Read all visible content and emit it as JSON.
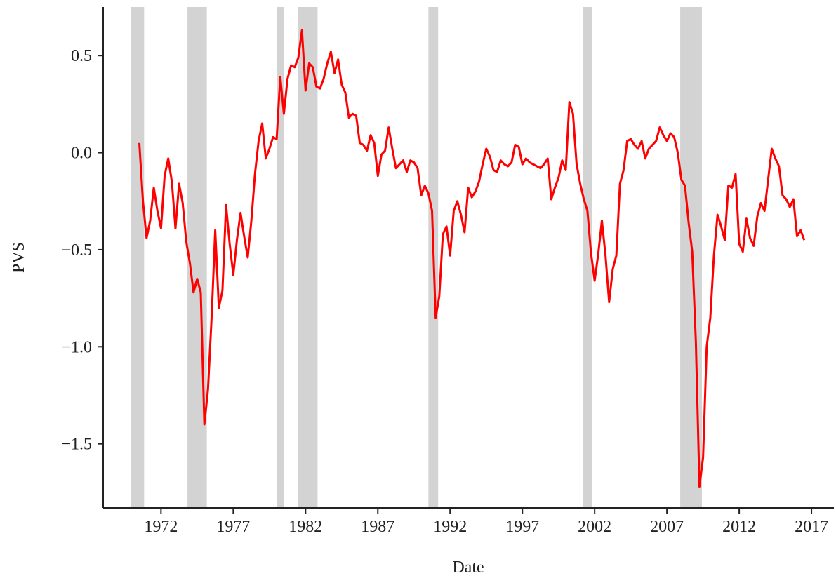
{
  "chart_data": {
    "type": "line",
    "xlabel": "Date",
    "ylabel": "PVS",
    "xlim": [
      1968,
      2018.55
    ],
    "ylim": [
      -1.83,
      0.75
    ],
    "xticks": [
      1972,
      1977,
      1982,
      1987,
      1992,
      1997,
      2002,
      2007,
      2012,
      2017
    ],
    "yticks": [
      0.5,
      {
        "value": 0,
        "label": "0.0"
      },
      {
        "value": -0.5,
        "label": "−0.5"
      },
      {
        "value": -1.0,
        "label": "−1.0"
      },
      {
        "value": -1.5,
        "label": "−1.5"
      }
    ],
    "grid": false,
    "shaded_periods": [
      [
        1969.92,
        1970.83
      ],
      [
        1973.83,
        1975.17
      ],
      [
        1980.0,
        1980.5
      ],
      [
        1981.5,
        1982.83
      ],
      [
        1990.5,
        1991.17
      ],
      [
        2001.17,
        2001.83
      ],
      [
        2007.92,
        2009.42
      ]
    ],
    "shade_color": "#d3d3d3",
    "series": [
      {
        "name": "PVS",
        "color": "#ff0000",
        "x": [
          1970.5,
          1970.75,
          1971,
          1971.25,
          1971.5,
          1971.75,
          1972,
          1972.25,
          1972.5,
          1972.75,
          1973,
          1973.25,
          1973.5,
          1973.75,
          1974,
          1974.25,
          1974.5,
          1974.75,
          1975,
          1975.25,
          1975.5,
          1975.75,
          1976,
          1976.25,
          1976.5,
          1976.75,
          1977,
          1977.25,
          1977.5,
          1977.75,
          1978,
          1978.25,
          1978.5,
          1978.75,
          1979,
          1979.25,
          1979.5,
          1979.75,
          1980,
          1980.25,
          1980.5,
          1980.75,
          1981,
          1981.25,
          1981.5,
          1981.75,
          1982,
          1982.25,
          1982.5,
          1982.75,
          1983,
          1983.25,
          1983.5,
          1983.75,
          1984,
          1984.25,
          1984.5,
          1984.75,
          1985,
          1985.25,
          1985.5,
          1985.75,
          1986,
          1986.25,
          1986.5,
          1986.75,
          1987,
          1987.25,
          1987.5,
          1987.75,
          1988,
          1988.25,
          1988.5,
          1988.75,
          1989,
          1989.25,
          1989.5,
          1989.75,
          1990,
          1990.25,
          1990.5,
          1990.75,
          1991,
          1991.25,
          1991.5,
          1991.75,
          1992,
          1992.25,
          1992.5,
          1992.75,
          1993,
          1993.25,
          1993.5,
          1993.75,
          1994,
          1994.25,
          1994.5,
          1994.75,
          1995,
          1995.25,
          1995.5,
          1995.75,
          1996,
          1996.25,
          1996.5,
          1996.75,
          1997,
          1997.25,
          1997.5,
          1997.75,
          1998,
          1998.25,
          1998.5,
          1998.75,
          1999,
          1999.25,
          1999.5,
          1999.75,
          2000,
          2000.25,
          2000.5,
          2000.75,
          2001,
          2001.25,
          2001.5,
          2001.75,
          2002,
          2002.25,
          2002.5,
          2002.75,
          2003,
          2003.25,
          2003.5,
          2003.75,
          2004,
          2004.25,
          2004.5,
          2004.75,
          2005,
          2005.25,
          2005.5,
          2005.75,
          2006,
          2006.25,
          2006.5,
          2006.75,
          2007,
          2007.25,
          2007.5,
          2007.75,
          2008,
          2008.25,
          2008.5,
          2008.75,
          2009,
          2009.25,
          2009.5,
          2009.75,
          2010,
          2010.25,
          2010.5,
          2010.75,
          2011,
          2011.25,
          2011.5,
          2011.75,
          2012,
          2012.25,
          2012.5,
          2012.75,
          2013,
          2013.25,
          2013.5,
          2013.75,
          2014,
          2014.25,
          2014.5,
          2014.75,
          2015,
          2015.25,
          2015.5,
          2015.75,
          2016,
          2016.25,
          2016.5
        ],
        "values": [
          0.05,
          -0.25,
          -0.44,
          -0.35,
          -0.18,
          -0.3,
          -0.39,
          -0.12,
          -0.03,
          -0.15,
          -0.39,
          -0.16,
          -0.26,
          -0.46,
          -0.57,
          -0.72,
          -0.65,
          -0.72,
          -1.4,
          -1.22,
          -0.85,
          -0.4,
          -0.8,
          -0.71,
          -0.27,
          -0.47,
          -0.63,
          -0.45,
          -0.31,
          -0.43,
          -0.54,
          -0.35,
          -0.11,
          0.06,
          0.15,
          -0.03,
          0.02,
          0.08,
          0.07,
          0.39,
          0.2,
          0.38,
          0.45,
          0.44,
          0.49,
          0.63,
          0.32,
          0.46,
          0.44,
          0.34,
          0.33,
          0.38,
          0.46,
          0.52,
          0.41,
          0.48,
          0.35,
          0.31,
          0.18,
          0.2,
          0.19,
          0.05,
          0.04,
          0.01,
          0.09,
          0.05,
          -0.12,
          -0.01,
          0.01,
          0.13,
          0.02,
          -0.08,
          -0.06,
          -0.04,
          -0.1,
          -0.04,
          -0.05,
          -0.08,
          -0.22,
          -0.17,
          -0.21,
          -0.3,
          -0.85,
          -0.74,
          -0.42,
          -0.38,
          -0.53,
          -0.3,
          -0.25,
          -0.32,
          -0.41,
          -0.18,
          -0.23,
          -0.2,
          -0.15,
          -0.06,
          0.02,
          -0.02,
          -0.09,
          -0.1,
          -0.04,
          -0.06,
          -0.07,
          -0.05,
          0.04,
          0.03,
          -0.06,
          -0.03,
          -0.05,
          -0.06,
          -0.07,
          -0.08,
          -0.06,
          -0.03,
          -0.24,
          -0.18,
          -0.13,
          -0.04,
          -0.09,
          0.26,
          0.2,
          -0.06,
          -0.16,
          -0.24,
          -0.3,
          -0.52,
          -0.66,
          -0.52,
          -0.35,
          -0.53,
          -0.77,
          -0.6,
          -0.53,
          -0.16,
          -0.09,
          0.06,
          0.07,
          0.04,
          0.02,
          0.06,
          -0.03,
          0.02,
          0.04,
          0.06,
          0.13,
          0.09,
          0.06,
          0.1,
          0.08,
          0.0,
          -0.14,
          -0.17,
          -0.36,
          -0.51,
          -0.97,
          -1.72,
          -1.57,
          -1.0,
          -0.85,
          -0.53,
          -0.32,
          -0.38,
          -0.45,
          -0.17,
          -0.18,
          -0.11,
          -0.47,
          -0.51,
          -0.34,
          -0.44,
          -0.48,
          -0.33,
          -0.26,
          -0.3,
          -0.14,
          0.02,
          -0.03,
          -0.07,
          -0.22,
          -0.24,
          -0.28,
          -0.24,
          -0.43,
          -0.4,
          -0.45
        ]
      }
    ]
  }
}
